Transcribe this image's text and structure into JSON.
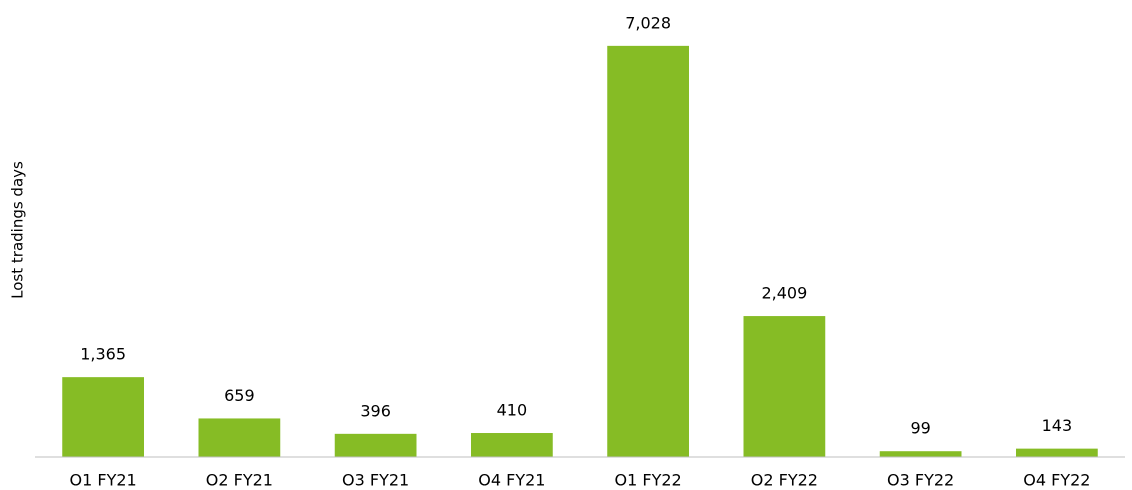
{
  "chart_data": {
    "type": "bar",
    "y_label": "Lost tradings days",
    "categories": [
      "O1 FY21",
      "O2 FY21",
      "O3 FY21",
      "O4 FY21",
      "O1 FY22",
      "O2 FY22",
      "O3 FY22",
      "O4 FY22"
    ],
    "values": [
      1365,
      659,
      396,
      410,
      7028,
      2409,
      99,
      143
    ],
    "value_labels": [
      "1,365",
      "659",
      "396",
      "410",
      "7,028",
      "2,409",
      "99",
      "143"
    ],
    "color": "#86bc25",
    "ylim": [
      0,
      8000
    ]
  }
}
